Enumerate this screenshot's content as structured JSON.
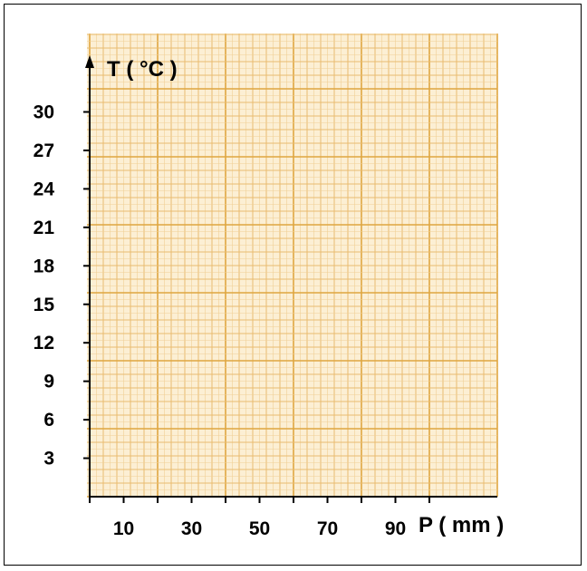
{
  "chart_data": {
    "type": "line",
    "title": "",
    "xlabel": "P ( mm )",
    "ylabel": "T ( °C )",
    "x_ticks": [
      0,
      10,
      20,
      30,
      40,
      50,
      60,
      70,
      80,
      90,
      100
    ],
    "x_tick_labels": [
      10,
      30,
      50,
      70,
      90
    ],
    "y_ticks": [
      3,
      6,
      9,
      12,
      15,
      18,
      21,
      24,
      27,
      30
    ],
    "y_tick_labels": [
      3,
      6,
      9,
      12,
      15,
      18,
      21,
      24,
      27,
      30
    ],
    "xlim": [
      0,
      120
    ],
    "ylim": [
      0,
      33
    ],
    "grid": true,
    "grid_style": "millimeter graph paper",
    "series": []
  },
  "colors": {
    "paper": "#fcefd4",
    "grid_minor": "#f0cf95",
    "grid_mid": "#e9bb6f",
    "grid_major": "#dfa640",
    "axis": "#000000",
    "border": "#000000"
  }
}
